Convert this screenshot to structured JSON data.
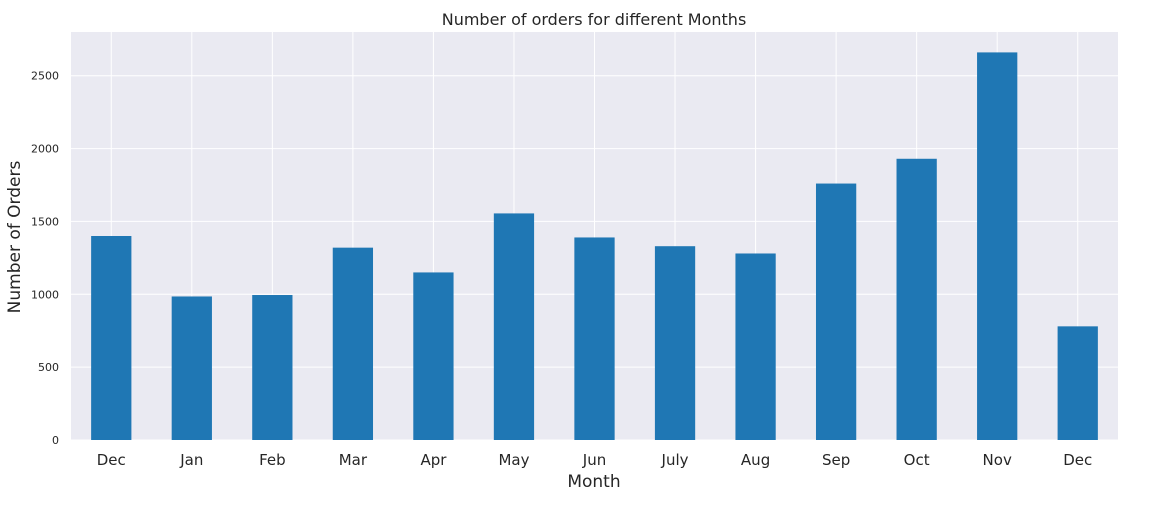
{
  "chart_data": {
    "type": "bar",
    "title": "Number of orders for different Months",
    "xlabel": "Month",
    "ylabel": "Number of Orders",
    "categories": [
      "Dec",
      "Jan",
      "Feb",
      "Mar",
      "Apr",
      "May",
      "Jun",
      "July",
      "Aug",
      "Sep",
      "Oct",
      "Nov",
      "Dec"
    ],
    "values": [
      1400,
      985,
      995,
      1320,
      1150,
      1555,
      1390,
      1330,
      1280,
      1760,
      1930,
      2660,
      780
    ],
    "ylim": [
      0,
      2800
    ],
    "yticks": [
      0,
      500,
      1000,
      1500,
      2000,
      2500
    ],
    "grid": true,
    "legend": "none",
    "colors": {
      "bar": "#1f77b4",
      "plot_background": "#eaeaf2",
      "grid": "#ffffff"
    }
  }
}
